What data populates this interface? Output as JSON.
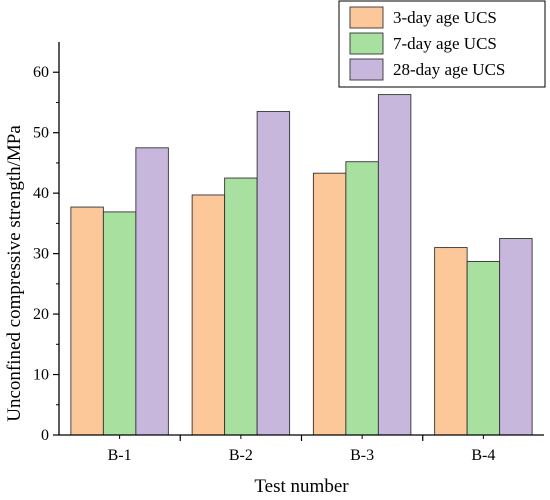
{
  "chart_data": {
    "type": "bar",
    "categories": [
      "B-1",
      "B-2",
      "B-3",
      "B-4"
    ],
    "series": [
      {
        "name": "3-day age UCS",
        "values": [
          37.7,
          39.7,
          43.3,
          31.0
        ],
        "color": "#FCC89A"
      },
      {
        "name": "7-day age UCS",
        "values": [
          36.9,
          42.5,
          45.2,
          28.7
        ],
        "color": "#A8E0A0"
      },
      {
        "name": "28-day age UCS",
        "values": [
          47.5,
          53.5,
          56.3,
          32.5
        ],
        "color": "#C8B7DC"
      }
    ],
    "xlabel": "Test number",
    "ylabel": "Unconfined compressive strength/MPa",
    "ylim": [
      0,
      65
    ],
    "yticks": [
      0,
      10,
      20,
      30,
      40,
      50,
      60
    ],
    "grid": false,
    "legend_position": "top-right",
    "bar_stroke": "#333333"
  }
}
